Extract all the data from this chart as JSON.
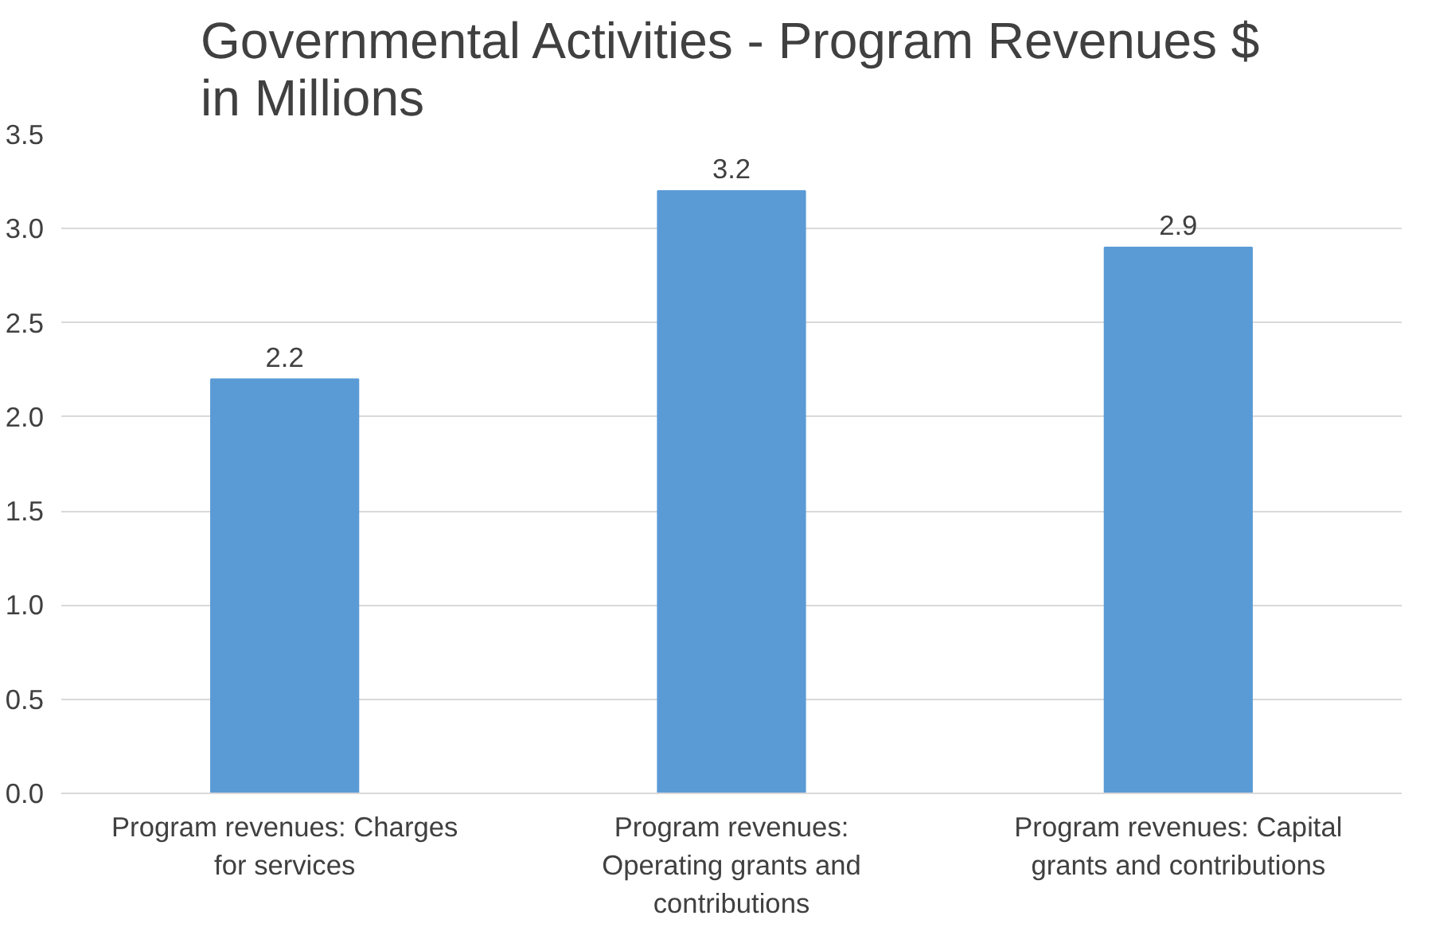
{
  "chart_data": {
    "type": "bar",
    "title": "Governmental Activities - Program Revenues $ in Millions",
    "categories": [
      "Program revenues: Charges for services",
      "Program revenues: Operating grants and contributions",
      "Program revenues: Capital grants and contributions"
    ],
    "values": [
      2.2,
      3.2,
      2.9
    ],
    "color": "#5b9bd5",
    "data_labels": true,
    "ylim": [
      0,
      3.5
    ],
    "yticks": [
      {
        "value": 0,
        "label": "0.0"
      },
      0.5,
      {
        "value": 1,
        "label": "1.0"
      },
      1.5,
      {
        "value": 2,
        "label": "2.0"
      },
      2.5,
      {
        "value": 3,
        "label": "3.0"
      },
      3.5
    ],
    "grid": "y"
  }
}
